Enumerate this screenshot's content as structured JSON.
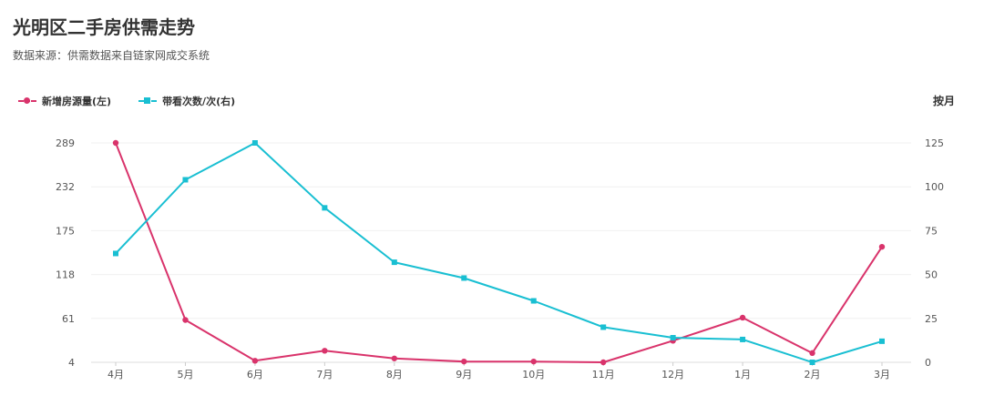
{
  "chart_data": {
    "type": "line",
    "title": "光明区二手房供需走势",
    "subtitle": "数据来源：供需数据来自链家网成交系统",
    "period_label": "按月",
    "categories": [
      "4月",
      "5月",
      "6月",
      "7月",
      "8月",
      "9月",
      "10月",
      "11月",
      "12月",
      "1月",
      "2月",
      "3月"
    ],
    "y_left": {
      "ticks": [
        "289",
        "232",
        "175",
        "118",
        "61",
        "4"
      ],
      "range": [
        4,
        289
      ]
    },
    "y_right": {
      "ticks": [
        "125",
        "100",
        "75",
        "50",
        "25",
        "0"
      ],
      "range": [
        0,
        125
      ]
    },
    "grid": true,
    "legend_position": "top-left",
    "series": [
      {
        "name": "新增房源量(左)",
        "axis": "left",
        "color": "#d9336b",
        "marker": "circle",
        "values": [
          289,
          59,
          6,
          19,
          9,
          5,
          5,
          4,
          32,
          62,
          16,
          154
        ]
      },
      {
        "name": "带看次数/次(右)",
        "axis": "right",
        "color": "#19bfd2",
        "marker": "square",
        "values": [
          62,
          104,
          125,
          88,
          57,
          48,
          35,
          20,
          14,
          13,
          0,
          12
        ]
      }
    ]
  }
}
